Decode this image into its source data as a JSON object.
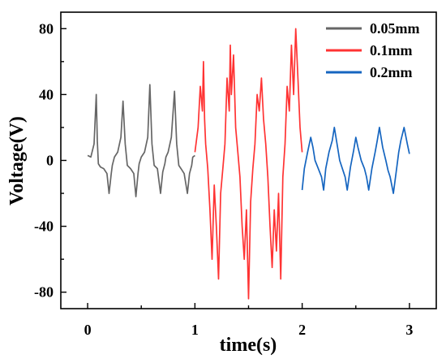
{
  "chart_data": {
    "type": "line",
    "title": "",
    "xlabel": "time(s)",
    "ylabel": "Voltage(V)",
    "xlim": [
      -0.25,
      3.25
    ],
    "ylim": [
      -90,
      90
    ],
    "x_ticks": [
      0,
      1,
      2,
      3
    ],
    "x_tick_labels": [
      "0",
      "1",
      "2",
      "3"
    ],
    "y_ticks": [
      -80,
      -40,
      0,
      40,
      80
    ],
    "y_tick_labels": [
      "-80",
      "-40",
      "0",
      "40",
      "80"
    ],
    "grid": false,
    "legend": "top-right",
    "series": [
      {
        "name": "0.05mm",
        "color": "#666666",
        "x": [
          0.0,
          0.03,
          0.06,
          0.08,
          0.09,
          0.1,
          0.12,
          0.15,
          0.18,
          0.2,
          0.22,
          0.23,
          0.25,
          0.28,
          0.31,
          0.33,
          0.35,
          0.37,
          0.4,
          0.43,
          0.45,
          0.47,
          0.48,
          0.5,
          0.53,
          0.56,
          0.58,
          0.6,
          0.62,
          0.65,
          0.68,
          0.7,
          0.72,
          0.73,
          0.75,
          0.78,
          0.81,
          0.83,
          0.85,
          0.87,
          0.9,
          0.93,
          0.95,
          0.97,
          0.98,
          1.0
        ],
        "values": [
          3,
          2,
          10,
          40,
          12,
          -2,
          -4,
          -5,
          -8,
          -20,
          -8,
          -3,
          2,
          5,
          14,
          36,
          10,
          -3,
          -5,
          -8,
          -22,
          -8,
          -2,
          2,
          5,
          14,
          46,
          10,
          -3,
          -5,
          -20,
          -7,
          -2,
          2,
          5,
          14,
          42,
          10,
          -3,
          -5,
          -8,
          -20,
          -8,
          -3,
          2,
          3
        ]
      },
      {
        "name": "0.1mm",
        "color": "#ff3333",
        "x": [
          1.0,
          1.03,
          1.05,
          1.07,
          1.08,
          1.09,
          1.1,
          1.12,
          1.14,
          1.16,
          1.18,
          1.2,
          1.22,
          1.24,
          1.26,
          1.28,
          1.3,
          1.32,
          1.33,
          1.34,
          1.36,
          1.38,
          1.4,
          1.42,
          1.44,
          1.46,
          1.48,
          1.5,
          1.52,
          1.54,
          1.56,
          1.58,
          1.6,
          1.62,
          1.64,
          1.66,
          1.68,
          1.7,
          1.72,
          1.74,
          1.76,
          1.78,
          1.8,
          1.82,
          1.84,
          1.86,
          1.88,
          1.9,
          1.92,
          1.94,
          1.96,
          1.98,
          2.0
        ],
        "values": [
          5,
          20,
          45,
          30,
          60,
          25,
          10,
          -5,
          -30,
          -60,
          -15,
          -40,
          -72,
          -20,
          -5,
          10,
          50,
          30,
          70,
          40,
          64,
          20,
          5,
          -10,
          -40,
          -60,
          -30,
          -84,
          -25,
          -5,
          10,
          40,
          30,
          50,
          25,
          10,
          -10,
          -40,
          -65,
          -30,
          -55,
          -20,
          -72,
          -10,
          10,
          45,
          30,
          70,
          40,
          80,
          50,
          20,
          5
        ]
      },
      {
        "name": "0.2mm",
        "color": "#1565c0",
        "x": [
          2.0,
          2.02,
          2.05,
          2.08,
          2.1,
          2.12,
          2.15,
          2.18,
          2.2,
          2.22,
          2.25,
          2.28,
          2.3,
          2.33,
          2.35,
          2.38,
          2.4,
          2.42,
          2.45,
          2.48,
          2.5,
          2.52,
          2.55,
          2.58,
          2.6,
          2.62,
          2.65,
          2.68,
          2.7,
          2.72,
          2.75,
          2.78,
          2.8,
          2.82,
          2.85,
          2.88,
          2.9,
          2.92,
          2.95,
          2.98,
          3.0
        ],
        "values": [
          -18,
          -5,
          5,
          14,
          8,
          0,
          -5,
          -10,
          -18,
          -5,
          5,
          12,
          20,
          8,
          0,
          -6,
          -10,
          -18,
          -4,
          6,
          14,
          8,
          0,
          -5,
          -10,
          -18,
          -5,
          5,
          12,
          20,
          8,
          0,
          -6,
          -10,
          -20,
          -5,
          5,
          12,
          20,
          10,
          4
        ]
      }
    ]
  }
}
